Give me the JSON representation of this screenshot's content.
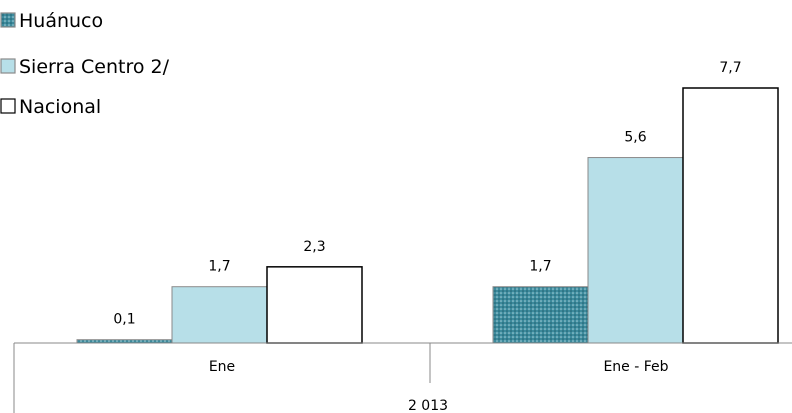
{
  "chart_data": {
    "type": "bar",
    "title": "",
    "xlabel": "",
    "ylabel": "",
    "group_label": "2 013",
    "categories": [
      "Ene",
      "Ene - Feb"
    ],
    "series": [
      {
        "name": "Huánuco",
        "values": [
          0.1,
          1.7
        ],
        "color": "#3d8a9c",
        "pattern": "dotted"
      },
      {
        "name": "Sierra Centro 2/",
        "values": [
          1.7,
          5.6
        ],
        "color": "#b7dfe8",
        "pattern": "solid"
      },
      {
        "name": "Nacional",
        "values": [
          2.3,
          7.7
        ],
        "color": "#ffffff",
        "pattern": "outline"
      }
    ],
    "data_labels": [
      [
        "0,1",
        "1,7"
      ],
      [
        "1,7",
        "5,6"
      ],
      [
        "2,3",
        "7,7"
      ]
    ],
    "ylim": [
      0,
      7.7
    ],
    "grid": false,
    "legend_position": "top-left"
  }
}
